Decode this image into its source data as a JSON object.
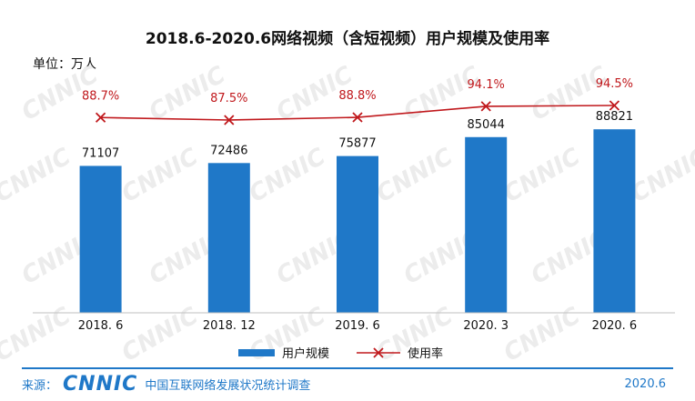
{
  "header": {
    "title": "2018.6-2020.6网络视频（含短视频）用户规模及使用率",
    "unit": "单位：万人"
  },
  "footer": {
    "source_label": "来源：",
    "logo_text": "CNNIC",
    "org": "中国互联网络发展状况统计调查",
    "date": "2020.6"
  },
  "watermark": "CNNIC",
  "chart_data": {
    "type": "bar",
    "title": "2018.6-2020.6网络视频（含短视频）用户规模及使用率",
    "categories": [
      "2018. 6",
      "2018. 12",
      "2019. 6",
      "2020. 3",
      "2020. 6"
    ],
    "series": [
      {
        "name": "用户规模",
        "type": "bar",
        "values": [
          71107,
          72486,
          75877,
          85044,
          88821
        ],
        "labels": [
          "71107",
          "72486",
          "75877",
          "85044",
          "88821"
        ],
        "color": "#1f78c8"
      },
      {
        "name": "使用率",
        "type": "line",
        "values": [
          88.7,
          87.5,
          88.8,
          94.1,
          94.5
        ],
        "labels": [
          "88.7%",
          "87.5%",
          "88.8%",
          "94.1%",
          "94.5%"
        ],
        "color": "#c0181c"
      }
    ],
    "bar_axis_range": [
      0,
      120000
    ],
    "line_axis_range": [
      0,
      120
    ],
    "legend_position": "bottom",
    "grid": false
  }
}
